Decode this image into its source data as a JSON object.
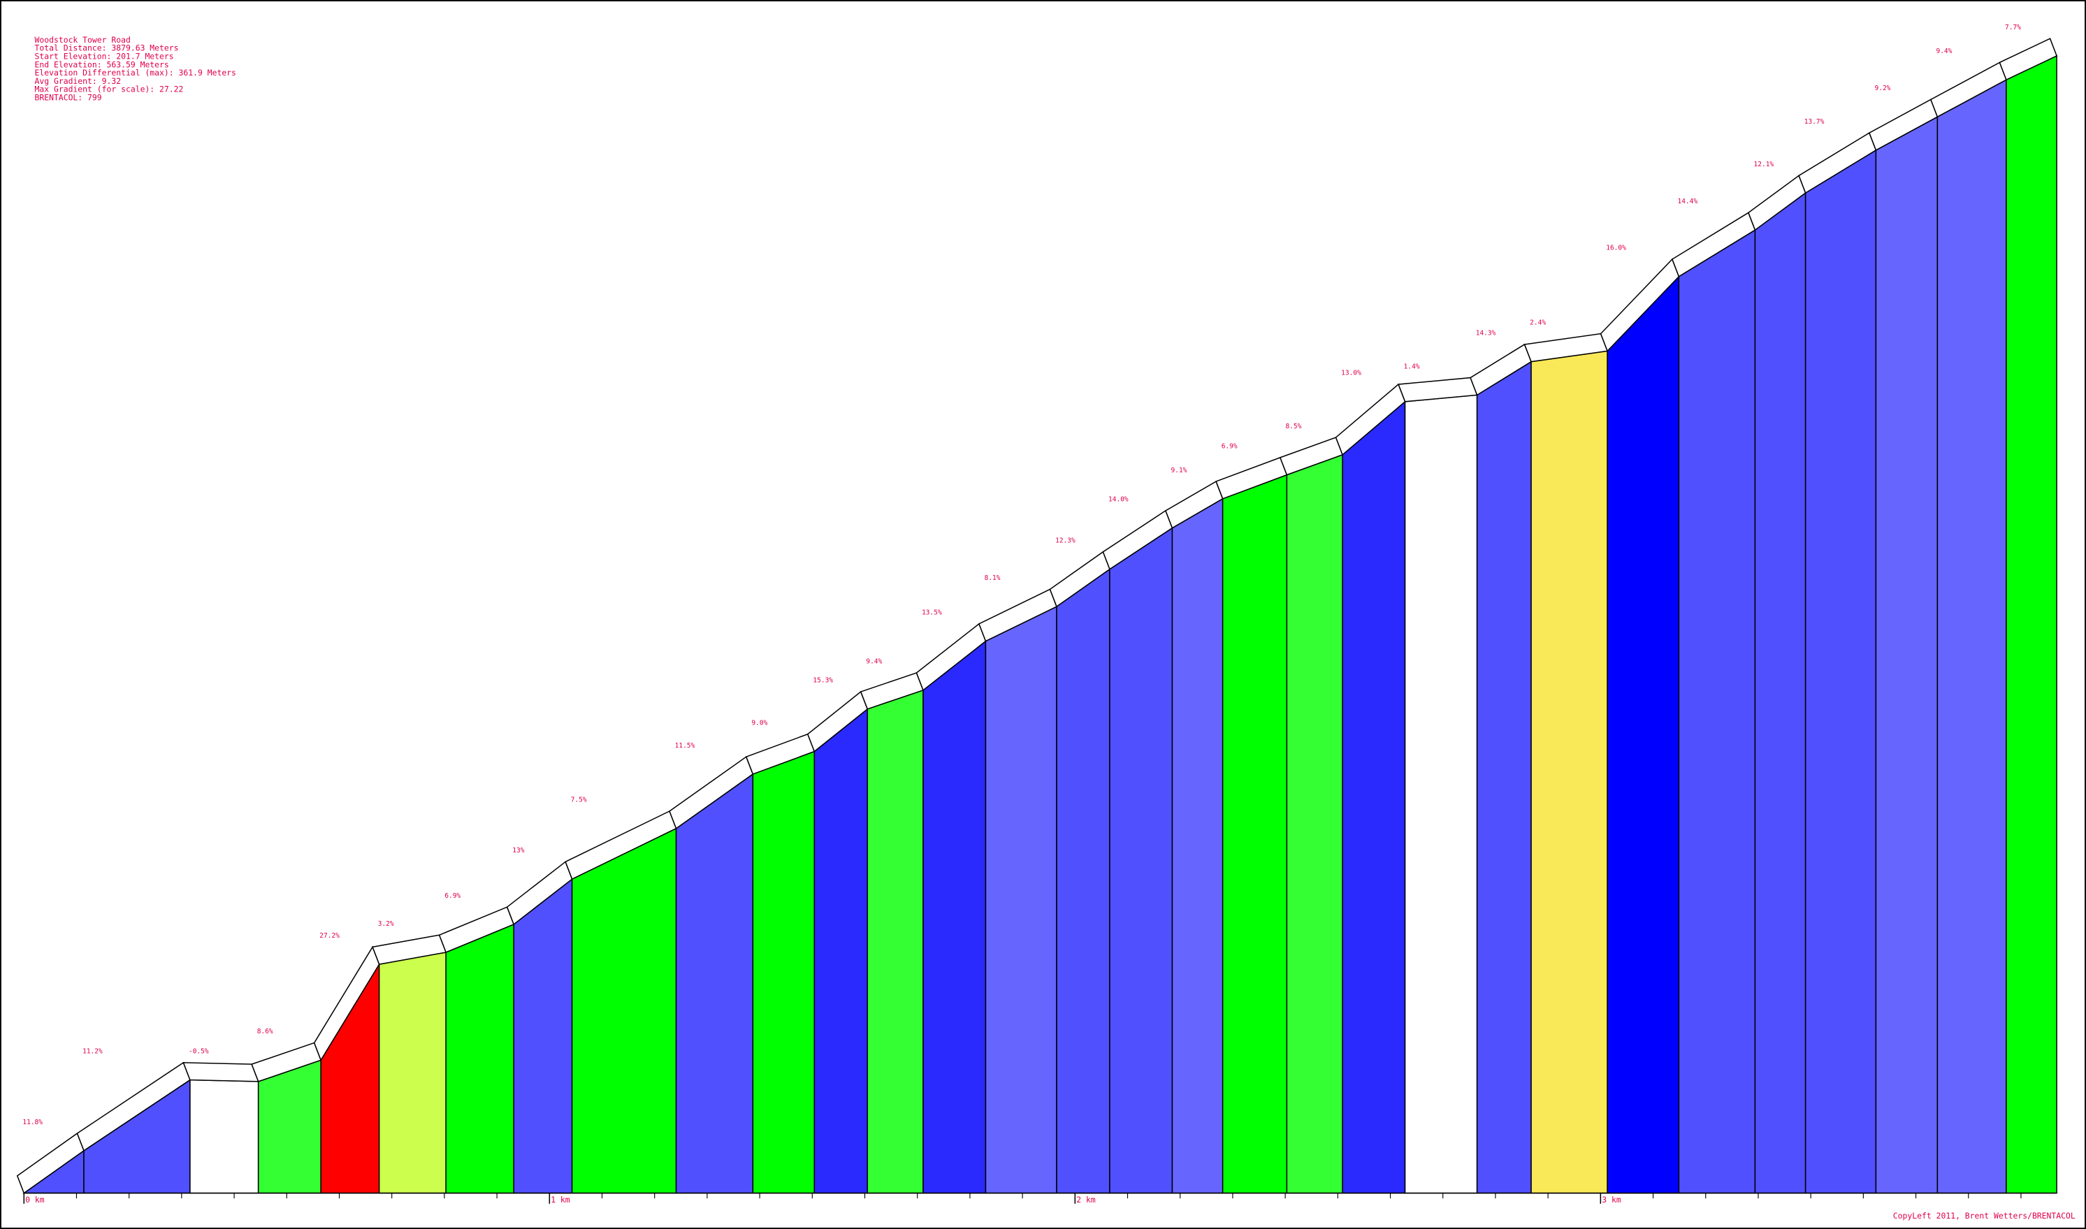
{
  "chart_data": {
    "type": "climb-profile",
    "info": [
      "Woodstock Tower Road",
      "Total Distance: 3879.63 Meters",
      "Start Elevation: 201.7 Meters",
      "End Elevation: 563.59 Meters",
      "Elevation Differential (max): 361.9 Meters",
      "Avg Gradient: 9.32",
      "Max Gradient (for scale): 27.22",
      "BRENTACOL: 799"
    ],
    "x": [
      0,
      114,
      316,
      446,
      565,
      676,
      803,
      932,
      1043,
      1241,
      1387,
      1504,
      1605,
      1711,
      1830,
      1965,
      2066,
      2185,
      2281,
      2403,
      2509,
      2628,
      2765,
      2868,
      3013,
      3149,
      3294,
      3390,
      3524,
      3641,
      3772,
      3868
    ],
    "elevation": [
      201.7,
      215.2,
      237.7,
      237.2,
      244,
      274.5,
      278.3,
      287.2,
      301.6,
      317.7,
      335,
      342.2,
      355.7,
      361.7,
      377.3,
      388.3,
      400.2,
      413.3,
      422.6,
      430.2,
      436.6,
      453.5,
      455.6,
      466.2,
      469.6,
      493.3,
      508.1,
      519.9,
      533.5,
      544.1,
      555.9,
      563.5
    ],
    "gradient": [
      11.8,
      11.2,
      -0.5,
      8.6,
      27.2,
      3.2,
      6.9,
      13,
      7.5,
      11.5,
      9.0,
      15.3,
      9.4,
      13.5,
      8.1,
      12.3,
      14.0,
      9.1,
      6.9,
      8.5,
      13.0,
      1.4,
      14.3,
      2.4,
      16.0,
      14.4,
      12.1,
      13.7,
      9.2,
      9.4,
      7.7
    ],
    "value_labels": [
      "11.8%",
      "11.2%",
      "-0.5%",
      "8.6%",
      "27.2%",
      "3.2%",
      "6.9%",
      "13%",
      "7.5%",
      "11.5%",
      "9.0%",
      "15.3%",
      "9.4%",
      "13.5%",
      "8.1%",
      "12.3%",
      "14.0%",
      "9.1%",
      "6.9%",
      "8.5%",
      "13.0%",
      "1.4%",
      "14.3%",
      "2.4%",
      "16.0%",
      "14.4%",
      "12.1%",
      "13.7%",
      "9.2%",
      "9.4%",
      "7.7%"
    ],
    "colors": [
      "#5050ff",
      "#5050ff",
      "#ffffff",
      "#33ff33",
      "#ff0000",
      "#ccff4d",
      "#00ff00",
      "#5050ff",
      "#00ff00",
      "#5050ff",
      "#00ff00",
      "#2a2aff",
      "#33ff33",
      "#2a2aff",
      "#6666ff",
      "#5050ff",
      "#5050ff",
      "#6666ff",
      "#00ff00",
      "#33ff33",
      "#2a2aff",
      "#ffffff",
      "#5050ff",
      "#f9e857",
      "#0000ff",
      "#5050ff",
      "#5050ff",
      "#5050ff",
      "#6666ff",
      "#6666ff",
      "#00ff00"
    ],
    "xlim": [
      0,
      3868
    ],
    "ylim": [
      201.7,
      563.5
    ],
    "xticks": [
      {
        "value": 0,
        "label": "0 km"
      },
      {
        "value": 1000,
        "label": "1 km"
      },
      {
        "value": 2000,
        "label": "2 km"
      },
      {
        "value": 3000,
        "label": "3 km"
      }
    ],
    "minor_xticks": [
      100,
      200,
      300,
      400,
      500,
      600,
      700,
      800,
      900,
      1100,
      1200,
      1300,
      1400,
      1500,
      1600,
      1700,
      1800,
      1900,
      2100,
      2200,
      2300,
      2400,
      2500,
      2600,
      2700,
      2800,
      2900,
      3100,
      3200,
      3300,
      3400,
      3500,
      3600,
      3700,
      3800
    ],
    "footer": "CopyLeft 2011, Brent Wetters/BRENTACOL"
  }
}
